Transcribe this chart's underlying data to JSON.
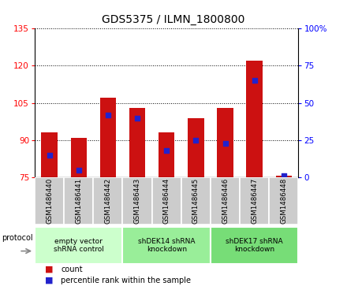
{
  "title": "GDS5375 / ILMN_1800800",
  "samples": [
    "GSM1486440",
    "GSM1486441",
    "GSM1486442",
    "GSM1486443",
    "GSM1486444",
    "GSM1486445",
    "GSM1486446",
    "GSM1486447",
    "GSM1486448"
  ],
  "counts": [
    93,
    91,
    107,
    103,
    93,
    99,
    103,
    122,
    75.5
  ],
  "percentile_ranks": [
    15,
    5,
    42,
    40,
    18,
    25,
    23,
    65,
    1
  ],
  "ylim_left": [
    75,
    135
  ],
  "ylim_right": [
    0,
    100
  ],
  "yticks_left": [
    75,
    90,
    105,
    120,
    135
  ],
  "yticks_right": [
    0,
    25,
    50,
    75,
    100
  ],
  "bar_color": "#cc1111",
  "dot_color": "#2222cc",
  "protocol_groups": [
    {
      "label": "empty vector\nshRNA control",
      "start": 0,
      "end": 3,
      "color": "#ccffcc"
    },
    {
      "label": "shDEK14 shRNA\nknockdown",
      "start": 3,
      "end": 6,
      "color": "#99ee99"
    },
    {
      "label": "shDEK17 shRNA\nknockdown",
      "start": 6,
      "end": 9,
      "color": "#77dd77"
    }
  ],
  "legend_count_label": "count",
  "legend_pct_label": "percentile rank within the sample",
  "protocol_label": "protocol",
  "bar_width": 0.55,
  "title_fontsize": 10
}
